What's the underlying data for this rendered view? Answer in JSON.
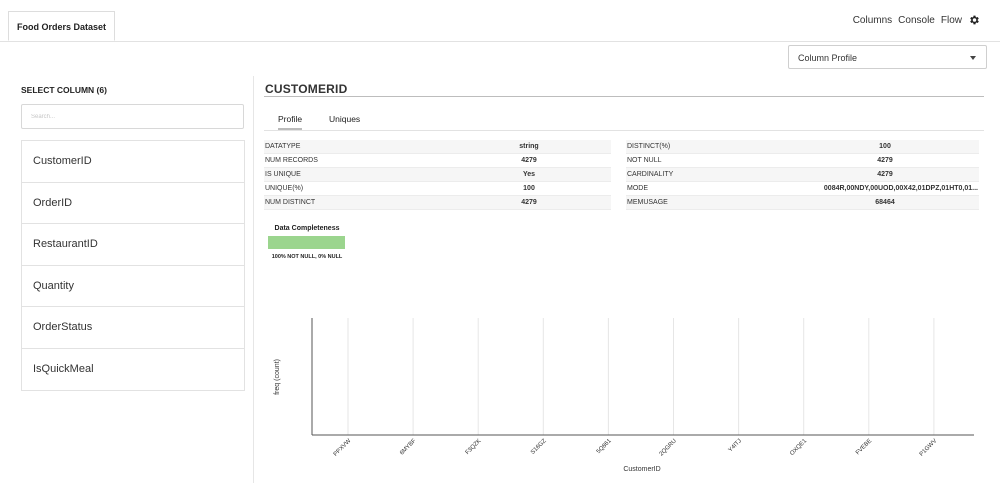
{
  "app": {
    "dataset_tab": "Food Orders Dataset",
    "nav": [
      "Columns",
      "Console",
      "Flow"
    ],
    "gear_icon": "gear-icon"
  },
  "profile_select": {
    "selected": "Column Profile"
  },
  "left": {
    "title": "SELECT COLUMN (6)",
    "search_placeholder": "Search...",
    "columns": [
      "CustomerID",
      "OrderID",
      "RestaurantID",
      "Quantity",
      "OrderStatus",
      "IsQuickMeal"
    ]
  },
  "column": {
    "title": "CUSTOMERID",
    "tabs": [
      "Profile",
      "Uniques"
    ],
    "active_tab": "Profile"
  },
  "stats": {
    "left": [
      {
        "key": "DATATYPE",
        "value": "string"
      },
      {
        "key": "NUM RECORDS",
        "value": "4279"
      },
      {
        "key": "IS UNIQUE",
        "value": "Yes"
      },
      {
        "key": "UNIQUE(%)",
        "value": "100"
      },
      {
        "key": "NUM DISTINCT",
        "value": "4279"
      }
    ],
    "right": [
      {
        "key": "DISTINCT(%)",
        "value": "100"
      },
      {
        "key": "NOT NULL",
        "value": "4279"
      },
      {
        "key": "CARDINALITY",
        "value": "4279"
      },
      {
        "key": "MODE",
        "value": "0084R,00NDY,00UOD,00X42,01DPZ,01HT0,01..."
      },
      {
        "key": "MEMUSAGE",
        "value": "68464"
      }
    ]
  },
  "completeness": {
    "title": "Data Completeness",
    "label": "100% NOT NULL, 0% NULL",
    "not_null_pct": 100,
    "color": "#9bd58e"
  },
  "chart_data": {
    "type": "bar",
    "xlabel": "CustomerID",
    "ylabel": "freq (count)",
    "categories": [
      "PPXVW",
      "6MYBF",
      "F3QZK",
      "S16GZ",
      "5Q861",
      "2QGRU",
      "Y4ITJ",
      "OXQE1",
      "FVEBE",
      "P1GWV"
    ],
    "values": [
      null,
      null,
      null,
      null,
      null,
      null,
      null,
      null,
      null,
      null
    ],
    "grid": "vertical"
  }
}
